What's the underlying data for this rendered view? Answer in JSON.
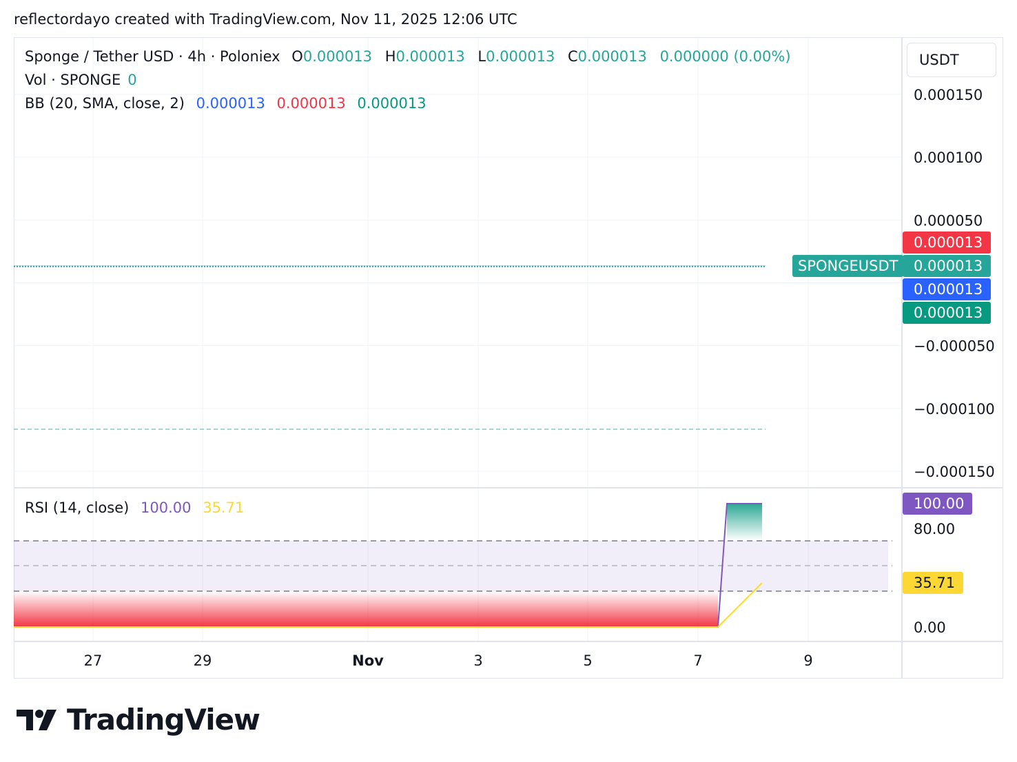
{
  "header": {
    "text": "reflectordayo created with TradingView.com, Nov 11, 2025 12:06 UTC"
  },
  "legend": {
    "symbol": "Sponge / Tether USD · 4h · Poloniex",
    "o_label": "O",
    "o_value": "0.000013",
    "h_label": "H",
    "h_value": "0.000013",
    "l_label": "L",
    "l_value": "0.000013",
    "c_label": "C",
    "c_value": "0.000013",
    "change": "0.000000 (0.00%)",
    "vol_label": "Vol · SPONGE",
    "vol_value": "0",
    "bb_label": "BB (20, SMA, close, 2)",
    "bb_basis": "0.000013",
    "bb_upper": "0.000013",
    "bb_lower": "0.000013",
    "rsi_label": "RSI (14, close)",
    "rsi_value": "100.00",
    "rsi_ma_value": "35.71"
  },
  "price_scale": {
    "currency": "USDT",
    "ticks": [
      "0.000150",
      "0.000100",
      "0.000050",
      "−0.000050",
      "−0.000100",
      "−0.000150"
    ]
  },
  "price_tags": {
    "upper": "0.000013",
    "symbol_name": "SPONGEUSDT",
    "last": "0.000013",
    "basis": "0.000013",
    "lower": "0.000013"
  },
  "rsi_scale": {
    "ticks": [
      "80.00",
      "0.00"
    ],
    "rsi_tag": "100.00",
    "ma_tag": "35.71"
  },
  "time_axis": {
    "ticks": [
      "27",
      "29",
      "Nov",
      "3",
      "5",
      "7",
      "9"
    ]
  },
  "brand": {
    "name": "TradingView"
  },
  "colors": {
    "teal": "#26a69a",
    "red": "#f23645",
    "blue": "#2962ff",
    "green": "#089981",
    "rsi_purple": "#7e57c2",
    "rsi_ma_yellow": "#fdd835"
  },
  "chart_data": [
    {
      "type": "line",
      "title": "Sponge / Tether USD · 4h · Poloniex",
      "x": [
        "Oct 25",
        "Nov 8"
      ],
      "series": [
        {
          "name": "SPONGEUSDT",
          "values": [
            1.3e-05,
            1.3e-05
          ]
        }
      ],
      "ylim": [
        -0.00017,
        0.00017
      ],
      "xlabel": "",
      "ylabel": "USDT",
      "grid": true
    },
    {
      "type": "line",
      "title": "RSI (14, close)",
      "x": [
        "Oct 25",
        "Nov 7",
        "Nov 7",
        "Nov 8"
      ],
      "series": [
        {
          "name": "RSI",
          "values": [
            0,
            0,
            100,
            100
          ]
        },
        {
          "name": "RSI MA",
          "values": [
            0,
            0,
            0,
            35.71
          ]
        }
      ],
      "bands": [
        70,
        50,
        30
      ],
      "ylim": [
        0,
        100
      ],
      "grid": true
    }
  ]
}
